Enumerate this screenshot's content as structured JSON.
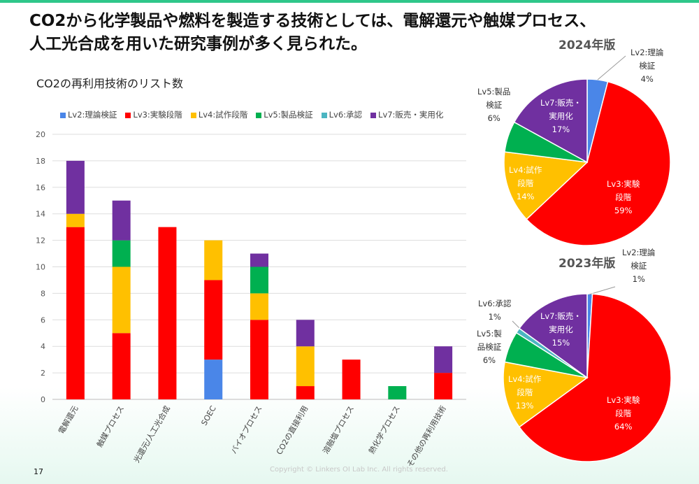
{
  "title": "CO2から化学製品や燃料を製造する技術としては、電解還元や触媒プロセス、\n人工光合成を用いた研究事例が多く見られた。",
  "page_number": "17",
  "copyright": "Copyright © Linkers OI Lab Inc. All rights reserved.",
  "colors": {
    "Lv2": "#4a86e8",
    "Lv3": "#ff0000",
    "Lv4": "#ffc000",
    "Lv5": "#00b050",
    "Lv6": "#4bb5c1",
    "Lv7": "#7030a0"
  },
  "chart_data": [
    {
      "type": "bar",
      "stacked": true,
      "title": "CO2の再利用技術のリスト数",
      "ylim": [
        0,
        20
      ],
      "yticks": [
        "0",
        "2",
        "4",
        "6",
        "8",
        "10",
        "12",
        "14",
        "16",
        "18",
        "20"
      ],
      "grid": true,
      "legend": "top",
      "categories": [
        "電解還元",
        "触媒プロセス",
        "光還元/人工光合成",
        "SOEC",
        "バイオプロセス",
        "CO2の直接利用",
        "溶融塩プロセス",
        "熱化学プロセス",
        "その他の再利用技術"
      ],
      "series": [
        {
          "name": "Lv2:理論検証",
          "key": "Lv2",
          "values": [
            0,
            0,
            0,
            3,
            0,
            0,
            0,
            0,
            0
          ]
        },
        {
          "name": "Lv3:実験段階",
          "key": "Lv3",
          "values": [
            13,
            5,
            13,
            6,
            6,
            1,
            3,
            0,
            2
          ]
        },
        {
          "name": "Lv4:試作段階",
          "key": "Lv4",
          "values": [
            1,
            5,
            0,
            3,
            2,
            3,
            0,
            0,
            0
          ]
        },
        {
          "name": "Lv5:製品検証",
          "key": "Lv5",
          "values": [
            0,
            2,
            0,
            0,
            2,
            0,
            0,
            1,
            0
          ]
        },
        {
          "name": "Lv6:承認",
          "key": "Lv6",
          "values": [
            0,
            0,
            0,
            0,
            0,
            0,
            0,
            0,
            0
          ]
        },
        {
          "name": "Lv7:販売・実用化",
          "key": "Lv7",
          "values": [
            4,
            3,
            0,
            0,
            1,
            2,
            0,
            0,
            2
          ]
        }
      ]
    },
    {
      "type": "pie",
      "title": "2024年版",
      "slices": [
        {
          "key": "Lv2",
          "label": "Lv2:理論\n検証",
          "value": 4,
          "pct": "4%"
        },
        {
          "key": "Lv3",
          "label": "Lv3:実験\n段階",
          "value": 59,
          "pct": "59%"
        },
        {
          "key": "Lv4",
          "label": "Lv4:試作\n段階",
          "value": 14,
          "pct": "14%"
        },
        {
          "key": "Lv5",
          "label": "Lv5:製品\n検証",
          "value": 6,
          "pct": "6%"
        },
        {
          "key": "Lv7",
          "label": "Lv7:販売・\n実用化",
          "value": 17,
          "pct": "17%"
        }
      ]
    },
    {
      "type": "pie",
      "title": "2023年版",
      "slices": [
        {
          "key": "Lv2",
          "label": "Lv2:理論\n検証",
          "value": 1,
          "pct": "1%"
        },
        {
          "key": "Lv3",
          "label": "Lv3:実験\n段階",
          "value": 64,
          "pct": "64%"
        },
        {
          "key": "Lv4",
          "label": "Lv4:試作\n段階",
          "value": 13,
          "pct": "13%"
        },
        {
          "key": "Lv5",
          "label": "Lv5:製\n品検証",
          "value": 6,
          "pct": "6%"
        },
        {
          "key": "Lv6",
          "label": "Lv6:承認",
          "value": 1,
          "pct": "1%"
        },
        {
          "key": "Lv7",
          "label": "Lv7:販売・\n実用化",
          "value": 15,
          "pct": "15%"
        }
      ]
    }
  ]
}
